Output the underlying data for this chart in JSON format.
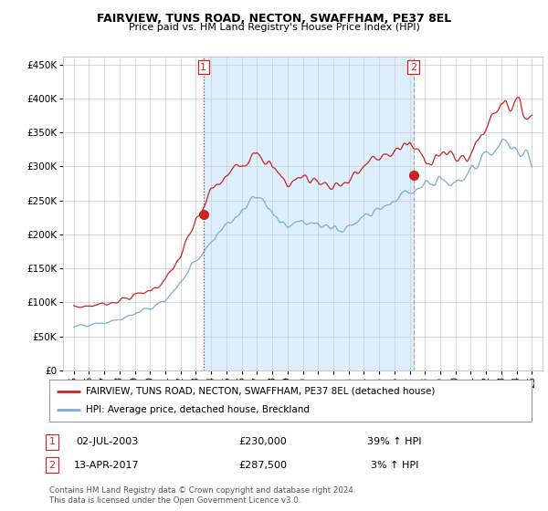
{
  "title": "FAIRVIEW, TUNS ROAD, NECTON, SWAFFHAM, PE37 8EL",
  "subtitle": "Price paid vs. HM Land Registry's House Price Index (HPI)",
  "legend_line1": "FAIRVIEW, TUNS ROAD, NECTON, SWAFFHAM, PE37 8EL (detached house)",
  "legend_line2": "HPI: Average price, detached house, Breckland",
  "sale1_label": "1",
  "sale1_date": "02-JUL-2003",
  "sale1_price": "£230,000",
  "sale1_hpi": "39% ↑ HPI",
  "sale2_label": "2",
  "sale2_date": "13-APR-2017",
  "sale2_price": "£287,500",
  "sale2_hpi": "3% ↑ HPI",
  "footer": "Contains HM Land Registry data © Crown copyright and database right 2024.\nThis data is licensed under the Open Government Licence v3.0.",
  "price_line_color": "#cc2222",
  "hpi_line_color": "#7aadd4",
  "vline1_color": "#cc2222",
  "vline2_color": "#aaaaaa",
  "shade_color": "#ddeeff",
  "sale1_x": 2003.5,
  "sale2_x": 2017.25,
  "sale1_y": 230000,
  "sale2_y": 287500,
  "ylim": [
    0,
    462000
  ],
  "xlim_start": 1994.3,
  "xlim_end": 2025.7,
  "yticks": [
    0,
    50000,
    100000,
    150000,
    200000,
    250000,
    300000,
    350000,
    400000,
    450000
  ],
  "xticks": [
    1995,
    1996,
    1997,
    1998,
    1999,
    2000,
    2001,
    2002,
    2003,
    2004,
    2005,
    2006,
    2007,
    2008,
    2009,
    2010,
    2011,
    2012,
    2013,
    2014,
    2015,
    2016,
    2017,
    2018,
    2019,
    2020,
    2021,
    2022,
    2023,
    2024,
    2025
  ],
  "background_color": "#ffffff",
  "grid_color": "#cccccc",
  "price_data_x": [
    1995.0,
    1995.08,
    1995.17,
    1995.25,
    1995.33,
    1995.42,
    1995.5,
    1995.58,
    1995.67,
    1995.75,
    1995.83,
    1995.92,
    1996.0,
    1996.08,
    1996.17,
    1996.25,
    1996.33,
    1996.42,
    1996.5,
    1996.58,
    1996.67,
    1996.75,
    1996.83,
    1996.92,
    1997.0,
    1997.08,
    1997.17,
    1997.25,
    1997.33,
    1997.42,
    1997.5,
    1997.58,
    1997.67,
    1997.75,
    1997.83,
    1997.92,
    1998.0,
    1998.08,
    1998.17,
    1998.25,
    1998.33,
    1998.42,
    1998.5,
    1998.58,
    1998.67,
    1998.75,
    1998.83,
    1998.92,
    1999.0,
    1999.08,
    1999.17,
    1999.25,
    1999.33,
    1999.42,
    1999.5,
    1999.58,
    1999.67,
    1999.75,
    1999.83,
    1999.92,
    2000.0,
    2000.08,
    2000.17,
    2000.25,
    2000.33,
    2000.42,
    2000.5,
    2000.58,
    2000.67,
    2000.75,
    2000.83,
    2000.92,
    2001.0,
    2001.08,
    2001.17,
    2001.25,
    2001.33,
    2001.42,
    2001.5,
    2001.58,
    2001.67,
    2001.75,
    2001.83,
    2001.92,
    2002.0,
    2002.08,
    2002.17,
    2002.25,
    2002.33,
    2002.42,
    2002.5,
    2002.58,
    2002.67,
    2002.75,
    2002.83,
    2002.92,
    2003.0,
    2003.08,
    2003.17,
    2003.25,
    2003.33,
    2003.42,
    2003.5,
    2003.58,
    2003.67,
    2003.75,
    2003.83,
    2003.92,
    2004.0,
    2004.08,
    2004.17,
    2004.25,
    2004.33,
    2004.42,
    2004.5,
    2004.58,
    2004.67,
    2004.75,
    2004.83,
    2004.92,
    2005.0,
    2005.08,
    2005.17,
    2005.25,
    2005.33,
    2005.42,
    2005.5,
    2005.58,
    2005.67,
    2005.75,
    2005.83,
    2005.92,
    2006.0,
    2006.08,
    2006.17,
    2006.25,
    2006.33,
    2006.42,
    2006.5,
    2006.58,
    2006.67,
    2006.75,
    2006.83,
    2006.92,
    2007.0,
    2007.08,
    2007.17,
    2007.25,
    2007.33,
    2007.42,
    2007.5,
    2007.58,
    2007.67,
    2007.75,
    2007.83,
    2007.92,
    2008.0,
    2008.08,
    2008.17,
    2008.25,
    2008.33,
    2008.42,
    2008.5,
    2008.58,
    2008.67,
    2008.75,
    2008.83,
    2008.92,
    2009.0,
    2009.08,
    2009.17,
    2009.25,
    2009.33,
    2009.42,
    2009.5,
    2009.58,
    2009.67,
    2009.75,
    2009.83,
    2009.92,
    2010.0,
    2010.08,
    2010.17,
    2010.25,
    2010.33,
    2010.42,
    2010.5,
    2010.58,
    2010.67,
    2010.75,
    2010.83,
    2010.92,
    2011.0,
    2011.08,
    2011.17,
    2011.25,
    2011.33,
    2011.42,
    2011.5,
    2011.58,
    2011.67,
    2011.75,
    2011.83,
    2011.92,
    2012.0,
    2012.08,
    2012.17,
    2012.25,
    2012.33,
    2012.42,
    2012.5,
    2012.58,
    2012.67,
    2012.75,
    2012.83,
    2012.92,
    2013.0,
    2013.08,
    2013.17,
    2013.25,
    2013.33,
    2013.42,
    2013.5,
    2013.58,
    2013.67,
    2013.75,
    2013.83,
    2013.92,
    2014.0,
    2014.08,
    2014.17,
    2014.25,
    2014.33,
    2014.42,
    2014.5,
    2014.58,
    2014.67,
    2014.75,
    2014.83,
    2014.92,
    2015.0,
    2015.08,
    2015.17,
    2015.25,
    2015.33,
    2015.42,
    2015.5,
    2015.58,
    2015.67,
    2015.75,
    2015.83,
    2015.92,
    2016.0,
    2016.08,
    2016.17,
    2016.25,
    2016.33,
    2016.42,
    2016.5,
    2016.58,
    2016.67,
    2016.75,
    2016.83,
    2016.92,
    2017.0,
    2017.08,
    2017.17,
    2017.25,
    2017.33,
    2017.42,
    2017.5,
    2017.58,
    2017.67,
    2017.75,
    2017.83,
    2017.92,
    2018.0,
    2018.08,
    2018.17,
    2018.25,
    2018.33,
    2018.42,
    2018.5,
    2018.58,
    2018.67,
    2018.75,
    2018.83,
    2018.92,
    2019.0,
    2019.08,
    2019.17,
    2019.25,
    2019.33,
    2019.42,
    2019.5,
    2019.58,
    2019.67,
    2019.75,
    2019.83,
    2019.92,
    2020.0,
    2020.08,
    2020.17,
    2020.25,
    2020.33,
    2020.42,
    2020.5,
    2020.58,
    2020.67,
    2020.75,
    2020.83,
    2020.92,
    2021.0,
    2021.08,
    2021.17,
    2021.25,
    2021.33,
    2021.42,
    2021.5,
    2021.58,
    2021.67,
    2021.75,
    2021.83,
    2021.92,
    2022.0,
    2022.08,
    2022.17,
    2022.25,
    2022.33,
    2022.42,
    2022.5,
    2022.58,
    2022.67,
    2022.75,
    2022.83,
    2022.92,
    2023.0,
    2023.08,
    2023.17,
    2023.25,
    2023.33,
    2023.42,
    2023.5,
    2023.58,
    2023.67,
    2023.75,
    2023.83,
    2023.92,
    2024.0,
    2024.08,
    2024.17,
    2024.25,
    2024.33,
    2024.42,
    2024.5,
    2024.58,
    2024.67,
    2024.75,
    2024.83,
    2024.92,
    2025.0
  ],
  "hpi_data_x": [
    1995.0,
    1995.08,
    1995.17,
    1995.25,
    1995.33,
    1995.42,
    1995.5,
    1995.58,
    1995.67,
    1995.75,
    1995.83,
    1995.92,
    1996.0,
    1996.08,
    1996.17,
    1996.25,
    1996.33,
    1996.42,
    1996.5,
    1996.58,
    1996.67,
    1996.75,
    1996.83,
    1996.92,
    1997.0,
    1997.08,
    1997.17,
    1997.25,
    1997.33,
    1997.42,
    1997.5,
    1997.58,
    1997.67,
    1997.75,
    1997.83,
    1997.92,
    1998.0,
    1998.08,
    1998.17,
    1998.25,
    1998.33,
    1998.42,
    1998.5,
    1998.58,
    1998.67,
    1998.75,
    1998.83,
    1998.92,
    1999.0,
    1999.08,
    1999.17,
    1999.25,
    1999.33,
    1999.42,
    1999.5,
    1999.58,
    1999.67,
    1999.75,
    1999.83,
    1999.92,
    2000.0,
    2000.08,
    2000.17,
    2000.25,
    2000.33,
    2000.42,
    2000.5,
    2000.58,
    2000.67,
    2000.75,
    2000.83,
    2000.92,
    2001.0,
    2001.08,
    2001.17,
    2001.25,
    2001.33,
    2001.42,
    2001.5,
    2001.58,
    2001.67,
    2001.75,
    2001.83,
    2001.92,
    2002.0,
    2002.08,
    2002.17,
    2002.25,
    2002.33,
    2002.42,
    2002.5,
    2002.58,
    2002.67,
    2002.75,
    2002.83,
    2002.92,
    2003.0,
    2003.08,
    2003.17,
    2003.25,
    2003.33,
    2003.42,
    2003.5,
    2003.58,
    2003.67,
    2003.75,
    2003.83,
    2003.92,
    2004.0,
    2004.08,
    2004.17,
    2004.25,
    2004.33,
    2004.42,
    2004.5,
    2004.58,
    2004.67,
    2004.75,
    2004.83,
    2004.92,
    2005.0,
    2005.08,
    2005.17,
    2005.25,
    2005.33,
    2005.42,
    2005.5,
    2005.58,
    2005.67,
    2005.75,
    2005.83,
    2005.92,
    2006.0,
    2006.08,
    2006.17,
    2006.25,
    2006.33,
    2006.42,
    2006.5,
    2006.58,
    2006.67,
    2006.75,
    2006.83,
    2006.92,
    2007.0,
    2007.08,
    2007.17,
    2007.25,
    2007.33,
    2007.42,
    2007.5,
    2007.58,
    2007.67,
    2007.75,
    2007.83,
    2007.92,
    2008.0,
    2008.08,
    2008.17,
    2008.25,
    2008.33,
    2008.42,
    2008.5,
    2008.58,
    2008.67,
    2008.75,
    2008.83,
    2008.92,
    2009.0,
    2009.08,
    2009.17,
    2009.25,
    2009.33,
    2009.42,
    2009.5,
    2009.58,
    2009.67,
    2009.75,
    2009.83,
    2009.92,
    2010.0,
    2010.08,
    2010.17,
    2010.25,
    2010.33,
    2010.42,
    2010.5,
    2010.58,
    2010.67,
    2010.75,
    2010.83,
    2010.92,
    2011.0,
    2011.08,
    2011.17,
    2011.25,
    2011.33,
    2011.42,
    2011.5,
    2011.58,
    2011.67,
    2011.75,
    2011.83,
    2011.92,
    2012.0,
    2012.08,
    2012.17,
    2012.25,
    2012.33,
    2012.42,
    2012.5,
    2012.58,
    2012.67,
    2012.75,
    2012.83,
    2012.92,
    2013.0,
    2013.08,
    2013.17,
    2013.25,
    2013.33,
    2013.42,
    2013.5,
    2013.58,
    2013.67,
    2013.75,
    2013.83,
    2013.92,
    2014.0,
    2014.08,
    2014.17,
    2014.25,
    2014.33,
    2014.42,
    2014.5,
    2014.58,
    2014.67,
    2014.75,
    2014.83,
    2014.92,
    2015.0,
    2015.08,
    2015.17,
    2015.25,
    2015.33,
    2015.42,
    2015.5,
    2015.58,
    2015.67,
    2015.75,
    2015.83,
    2015.92,
    2016.0,
    2016.08,
    2016.17,
    2016.25,
    2016.33,
    2016.42,
    2016.5,
    2016.58,
    2016.67,
    2016.75,
    2016.83,
    2016.92,
    2017.0,
    2017.08,
    2017.17,
    2017.25,
    2017.33,
    2017.42,
    2017.5,
    2017.58,
    2017.67,
    2017.75,
    2017.83,
    2017.92,
    2018.0,
    2018.08,
    2018.17,
    2018.25,
    2018.33,
    2018.42,
    2018.5,
    2018.58,
    2018.67,
    2018.75,
    2018.83,
    2018.92,
    2019.0,
    2019.08,
    2019.17,
    2019.25,
    2019.33,
    2019.42,
    2019.5,
    2019.58,
    2019.67,
    2019.75,
    2019.83,
    2019.92,
    2020.0,
    2020.08,
    2020.17,
    2020.25,
    2020.33,
    2020.42,
    2020.5,
    2020.58,
    2020.67,
    2020.75,
    2020.83,
    2020.92,
    2021.0,
    2021.08,
    2021.17,
    2021.25,
    2021.33,
    2021.42,
    2021.5,
    2021.58,
    2021.67,
    2021.75,
    2021.83,
    2021.92,
    2022.0,
    2022.08,
    2022.17,
    2022.25,
    2022.33,
    2022.42,
    2022.5,
    2022.58,
    2022.67,
    2022.75,
    2022.83,
    2022.92,
    2023.0,
    2023.08,
    2023.17,
    2023.25,
    2023.33,
    2023.42,
    2023.5,
    2023.58,
    2023.67,
    2023.75,
    2023.83,
    2023.92,
    2024.0,
    2024.08,
    2024.17,
    2024.25,
    2024.33,
    2024.42,
    2024.5,
    2024.58,
    2024.67,
    2024.75,
    2024.83,
    2024.92,
    2025.0
  ]
}
